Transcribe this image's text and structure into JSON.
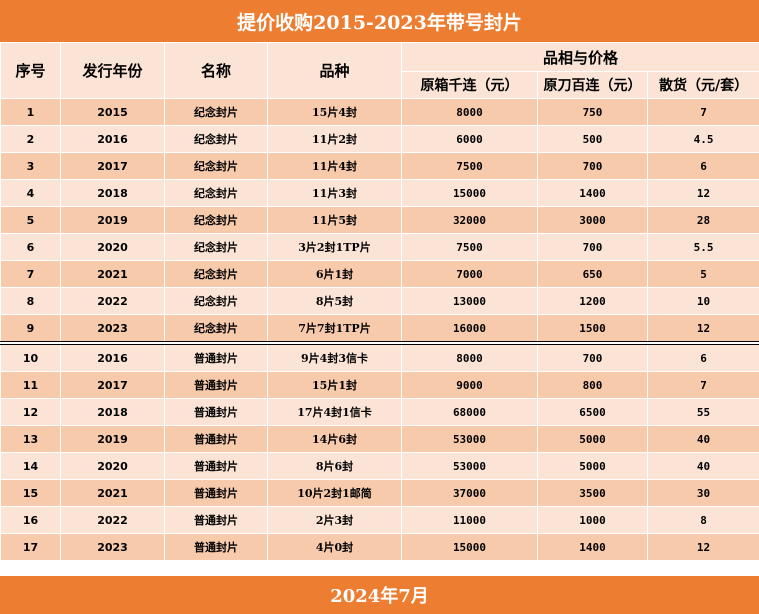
{
  "title": "提价收购2015-2023年带号封片",
  "footer": "2024年7月",
  "headers": {
    "seq": "序号",
    "year": "发行年份",
    "name": "名称",
    "variety": "品种",
    "group": "品相与价格",
    "box": "原箱千连（元）",
    "hundred": "原刀百连（元）",
    "loose": "散货（元/套）"
  },
  "rows": [
    {
      "seq": "1",
      "year": "2015",
      "name": "纪念封片",
      "variety": "15片4封",
      "box": "8000",
      "hundred": "750",
      "loose": "7"
    },
    {
      "seq": "2",
      "year": "2016",
      "name": "纪念封片",
      "variety": "11片2封",
      "box": "6000",
      "hundred": "500",
      "loose": "4.5"
    },
    {
      "seq": "3",
      "year": "2017",
      "name": "纪念封片",
      "variety": "11片4封",
      "box": "7500",
      "hundred": "700",
      "loose": "6"
    },
    {
      "seq": "4",
      "year": "2018",
      "name": "纪念封片",
      "variety": "11片3封",
      "box": "15000",
      "hundred": "1400",
      "loose": "12"
    },
    {
      "seq": "5",
      "year": "2019",
      "name": "纪念封片",
      "variety": "11片5封",
      "box": "32000",
      "hundred": "3000",
      "loose": "28"
    },
    {
      "seq": "6",
      "year": "2020",
      "name": "纪念封片",
      "variety": "3片2封1TP片",
      "box": "7500",
      "hundred": "700",
      "loose": "5.5"
    },
    {
      "seq": "7",
      "year": "2021",
      "name": "纪念封片",
      "variety": "6片1封",
      "box": "7000",
      "hundred": "650",
      "loose": "5"
    },
    {
      "seq": "8",
      "year": "2022",
      "name": "纪念封片",
      "variety": "8片5封",
      "box": "13000",
      "hundred": "1200",
      "loose": "10"
    },
    {
      "seq": "9",
      "year": "2023",
      "name": "纪念封片",
      "variety": "7片7封1TP片",
      "box": "16000",
      "hundred": "1500",
      "loose": "12"
    },
    {
      "seq": "10",
      "year": "2016",
      "name": "普通封片",
      "variety": "9片4封3信卡",
      "box": "8000",
      "hundred": "700",
      "loose": "6"
    },
    {
      "seq": "11",
      "year": "2017",
      "name": "普通封片",
      "variety": "15片1封",
      "box": "9000",
      "hundred": "800",
      "loose": "7"
    },
    {
      "seq": "12",
      "year": "2018",
      "name": "普通封片",
      "variety": "17片4封1信卡",
      "box": "68000",
      "hundred": "6500",
      "loose": "55"
    },
    {
      "seq": "13",
      "year": "2019",
      "name": "普通封片",
      "variety": "14片6封",
      "box": "53000",
      "hundred": "5000",
      "loose": "40"
    },
    {
      "seq": "14",
      "year": "2020",
      "name": "普通封片",
      "variety": "8片6封",
      "box": "53000",
      "hundred": "5000",
      "loose": "40"
    },
    {
      "seq": "15",
      "year": "2021",
      "name": "普通封片",
      "variety": "10片2封1邮简",
      "box": "37000",
      "hundred": "3500",
      "loose": "30"
    },
    {
      "seq": "16",
      "year": "2022",
      "name": "普通封片",
      "variety": "2片3封",
      "box": "11000",
      "hundred": "1000",
      "loose": "8"
    },
    {
      "seq": "17",
      "year": "2023",
      "name": "普通封片",
      "variety": "4片0封",
      "box": "15000",
      "hundred": "1400",
      "loose": "12"
    }
  ],
  "colors": {
    "banner": "#ed7d31",
    "row_dark": "#f7caac",
    "row_light": "#fbe4d5"
  }
}
